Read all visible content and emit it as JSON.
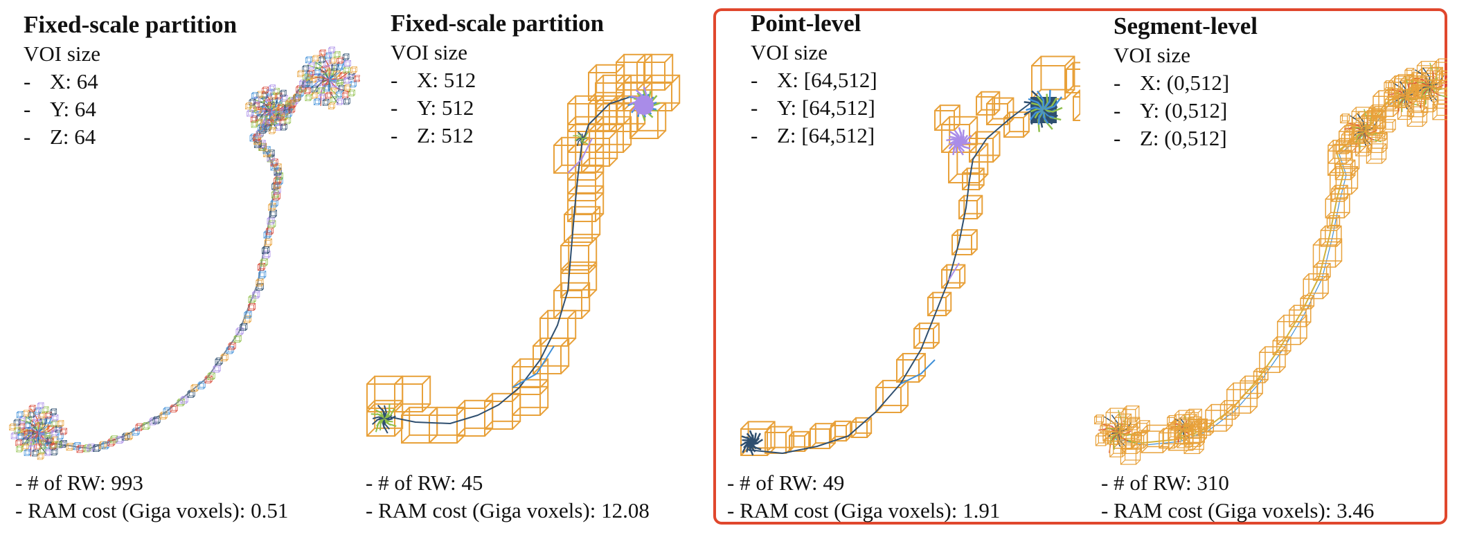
{
  "panels": [
    {
      "title": "Fixed-scale partition",
      "voi_label": "VOI size",
      "dims": [
        {
          "dash": "-",
          "text": "X: 64"
        },
        {
          "dash": "-",
          "text": "Y: 64"
        },
        {
          "dash": "-",
          "text": "Z: 64"
        }
      ],
      "rw": "- # of RW: 993",
      "ram": "- RAM cost (Giga voxels): 0.51"
    },
    {
      "title": "Fixed-scale partition",
      "voi_label": "VOI size",
      "dims": [
        {
          "dash": "-",
          "text": "X: 512"
        },
        {
          "dash": "-",
          "text": "Y: 512"
        },
        {
          "dash": "-",
          "text": "Z: 512"
        }
      ],
      "rw": "- # of RW: 45",
      "ram": "- RAM cost (Giga voxels): 12.08"
    },
    {
      "title": "Point-level",
      "voi_label": "VOI size",
      "dims": [
        {
          "dash": "-",
          "text": "X: [64,512]"
        },
        {
          "dash": "-",
          "text": "Y: [64,512]"
        },
        {
          "dash": "-",
          "text": "Z: [64,512]"
        }
      ],
      "rw": "- # of RW: 49",
      "ram": "- RAM cost (Giga voxels): 1.91"
    },
    {
      "title": "Segment-level",
      "voi_label": "VOI size",
      "dims": [
        {
          "dash": "-",
          "text": "X: (0,512]"
        },
        {
          "dash": "-",
          "text": "Y: (0,512]"
        },
        {
          "dash": "-",
          "text": "Z: (0,512]"
        }
      ],
      "rw": "- # of RW: 310",
      "ram": "- RAM cost (Giga voxels): 3.46"
    }
  ],
  "colors": {
    "box": "#e8a13a",
    "highlight": "#e0472d",
    "lilac": "#a98ce8",
    "navy": "#2f4f6f",
    "green": "#8fbf4a",
    "blue": "#3f8fd8",
    "red": "#d94a3a"
  }
}
